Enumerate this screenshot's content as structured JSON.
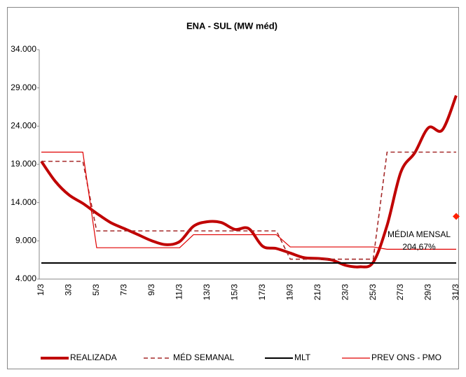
{
  "chart_data": {
    "type": "line",
    "title": "ENA - SUL (MW méd)",
    "categories": [
      "1/3",
      null,
      "3/3",
      null,
      "5/3",
      null,
      "7/3",
      null,
      "9/3",
      null,
      "11/3",
      null,
      "13/3",
      null,
      "15/3",
      null,
      "17/3",
      null,
      "19/3",
      null,
      "21/3",
      null,
      "23/3",
      null,
      "25/3",
      null,
      "27/3",
      null,
      "29/3",
      null,
      "31/3"
    ],
    "series": [
      {
        "name": "REALIZADA",
        "color": "#c00000",
        "style": "thick",
        "values": [
          19400,
          16800,
          15000,
          13900,
          12600,
          11400,
          10600,
          9800,
          9000,
          8500,
          8900,
          10900,
          11500,
          11400,
          10500,
          10600,
          8300,
          8000,
          7400,
          6800,
          6700,
          6500,
          5800,
          5600,
          6200,
          11000,
          18000,
          20500,
          23800,
          23500,
          28000
        ]
      },
      {
        "name": "MÉD SEMANAL",
        "color": "#a52a2a",
        "style": "dashed",
        "values": [
          19400,
          19400,
          19400,
          19400,
          10300,
          10300,
          10300,
          10300,
          10300,
          10300,
          10300,
          10300,
          10300,
          10300,
          10300,
          10300,
          10300,
          10300,
          6600,
          6600,
          6600,
          6600,
          6600,
          6600,
          6600,
          20600,
          20600,
          20600,
          20600,
          20600,
          20600
        ]
      },
      {
        "name": "MLT",
        "color": "#000000",
        "style": "solid",
        "values": [
          6100,
          6100,
          6100,
          6100,
          6100,
          6100,
          6100,
          6100,
          6100,
          6100,
          6100,
          6100,
          6100,
          6100,
          6100,
          6100,
          6100,
          6100,
          6100,
          6100,
          6100,
          6100,
          6100,
          6100,
          6100,
          6100,
          6100,
          6100,
          6100,
          6100,
          6100
        ]
      },
      {
        "name": "PREV ONS - PMO",
        "color": "#e00000",
        "style": "thin",
        "values": [
          20600,
          20600,
          20600,
          20600,
          8100,
          8100,
          8100,
          8100,
          8100,
          8100,
          8100,
          9800,
          9800,
          9800,
          9800,
          9800,
          9800,
          9800,
          8200,
          8200,
          8200,
          8200,
          8200,
          8200,
          8200,
          7900,
          7900,
          7900,
          7900,
          7900,
          7900
        ]
      }
    ],
    "annotation": {
      "lines": [
        "MÉDIA MENSAL",
        "204,67%"
      ],
      "value": 12200,
      "color": "#ff2000"
    },
    "ylim": [
      4000,
      34000
    ],
    "yticks": [
      {
        "value": 4000,
        "label": "4.000"
      },
      {
        "value": 9000,
        "label": "9.000"
      },
      {
        "value": 14000,
        "label": "14.000"
      },
      {
        "value": 19000,
        "label": "19.000"
      },
      {
        "value": 24000,
        "label": "24.000"
      },
      {
        "value": 29000,
        "label": "29.000"
      },
      {
        "value": 34000,
        "label": "34.000"
      }
    ],
    "legend": "bottom"
  }
}
